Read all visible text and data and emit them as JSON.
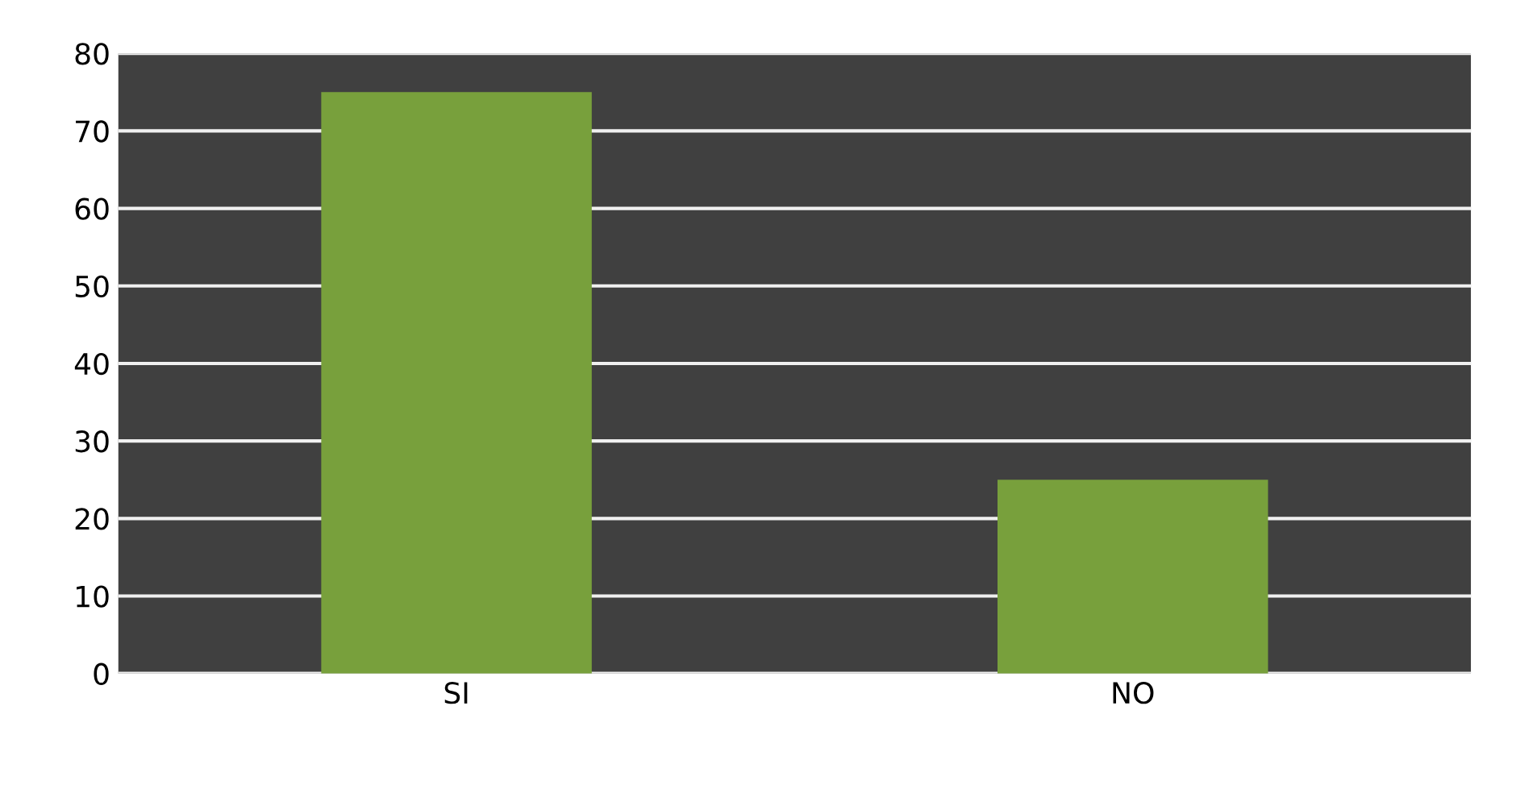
{
  "chart_data": {
    "type": "bar",
    "categories": [
      "SI",
      "NO"
    ],
    "values": [
      75,
      25
    ],
    "color": "#78a03c",
    "ylim": [
      0,
      80
    ],
    "yticks": [
      0,
      10,
      20,
      30,
      40,
      50,
      60,
      70,
      80
    ],
    "grid": "y",
    "legend": false
  }
}
